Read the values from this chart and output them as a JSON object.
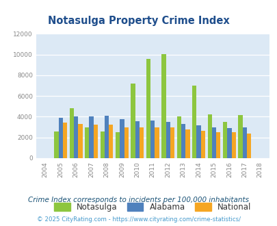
{
  "title": "Notasulga Property Crime Index",
  "years": [
    2004,
    2005,
    2006,
    2007,
    2008,
    2009,
    2010,
    2011,
    2012,
    2013,
    2014,
    2015,
    2016,
    2017,
    2018
  ],
  "notasulga": [
    0,
    2600,
    4850,
    3000,
    2600,
    2500,
    7200,
    9600,
    10050,
    4000,
    7000,
    4250,
    3500,
    4150,
    0
  ],
  "alabama": [
    0,
    3900,
    4000,
    4000,
    4100,
    3800,
    3550,
    3650,
    3500,
    3300,
    3150,
    3000,
    2900,
    2950,
    0
  ],
  "national": [
    0,
    3450,
    3300,
    3250,
    3250,
    3000,
    2950,
    2950,
    2950,
    2800,
    2650,
    2500,
    2500,
    2400,
    0
  ],
  "color_notasulga": "#8dc63f",
  "color_alabama": "#4f81bd",
  "color_national": "#f5a623",
  "bg_color": "#dce9f5",
  "ylim": [
    0,
    12000
  ],
  "yticks": [
    0,
    2000,
    4000,
    6000,
    8000,
    10000,
    12000
  ],
  "subtitle": "Crime Index corresponds to incidents per 100,000 inhabitants",
  "footer": "© 2025 CityRating.com - https://www.cityrating.com/crime-statistics/",
  "title_color": "#1f4e8c",
  "subtitle_color": "#1a5276",
  "footer_color": "#4499cc",
  "bar_width": 0.28,
  "grid_color": "#ffffff",
  "tick_color": "#888888"
}
